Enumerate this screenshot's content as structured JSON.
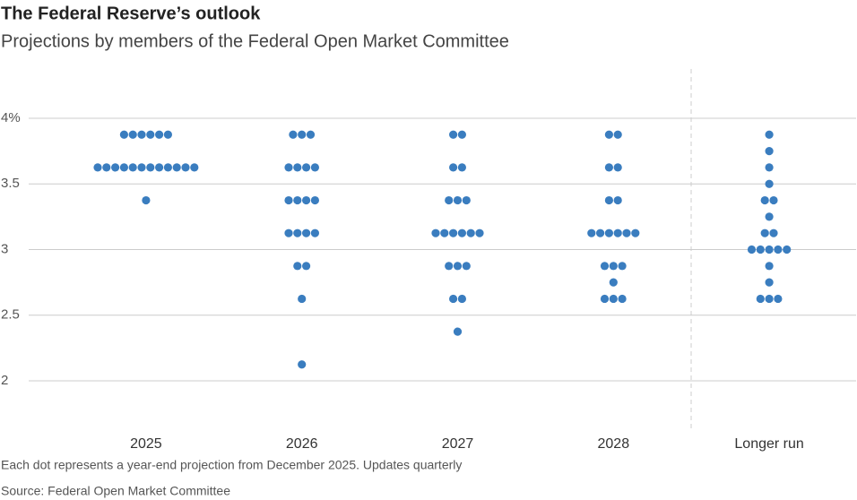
{
  "chart_data": {
    "type": "dot",
    "title": "The Federal Reserve’s outlook",
    "subtitle": "Projections by members of the Federal Open Market Committee",
    "categories": [
      "2025",
      "2026",
      "2027",
      "2028",
      "Longer run"
    ],
    "values": [
      [
        3.875,
        3.875,
        3.875,
        3.875,
        3.875,
        3.875,
        3.625,
        3.625,
        3.625,
        3.625,
        3.625,
        3.625,
        3.625,
        3.625,
        3.625,
        3.625,
        3.625,
        3.625,
        3.375
      ],
      [
        3.875,
        3.875,
        3.875,
        3.625,
        3.625,
        3.625,
        3.625,
        3.375,
        3.375,
        3.375,
        3.375,
        3.125,
        3.125,
        3.125,
        3.125,
        2.875,
        2.875,
        2.625,
        2.125
      ],
      [
        3.875,
        3.875,
        3.625,
        3.625,
        3.375,
        3.375,
        3.375,
        3.125,
        3.125,
        3.125,
        3.125,
        3.125,
        3.125,
        2.875,
        2.875,
        2.875,
        2.625,
        2.625,
        2.375
      ],
      [
        3.875,
        3.875,
        3.625,
        3.625,
        3.375,
        3.375,
        3.125,
        3.125,
        3.125,
        3.125,
        3.125,
        3.125,
        2.875,
        2.875,
        2.875,
        2.75,
        2.625,
        2.625,
        2.625
      ],
      [
        3.875,
        3.75,
        3.625,
        3.5,
        3.375,
        3.375,
        3.25,
        3.125,
        3.125,
        3.0,
        3.0,
        3.0,
        3.0,
        3.0,
        2.875,
        2.75,
        2.625,
        2.625,
        2.625
      ]
    ],
    "color": "#3a7dbf",
    "ylim": [
      1.625,
      4.375
    ],
    "yticks": [
      {
        "value": 4,
        "label": "4%"
      },
      3.5,
      3,
      2.5,
      2
    ],
    "grid": true,
    "note": "Each dot represents a year-end projection from December 2025. Updates quarterly",
    "source": "Source: Federal Open Market Committee"
  }
}
